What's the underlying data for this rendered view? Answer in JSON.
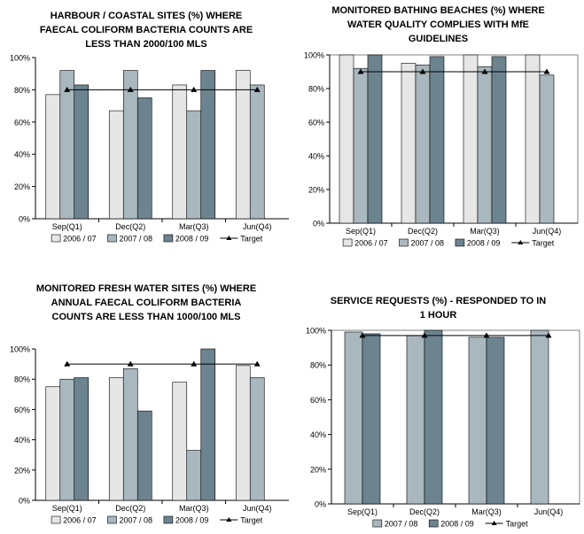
{
  "colors": {
    "s2006": "#e6e6e6",
    "s2007": "#a9b7be",
    "s2008": "#6c8390",
    "target": "#000000",
    "frame": "#808080"
  },
  "chart_data": [
    {
      "type": "bar",
      "title_lines": [
        "HARBOUR / COASTAL SITES (%) WHERE",
        "FAECAL COLIFORM BACTERIA COUNTS ARE",
        "LESS THAN 2000/100 MLS"
      ],
      "categories": [
        "Sep(Q1)",
        "Dec(Q2)",
        "Mar(Q3)",
        "Jun(Q4)"
      ],
      "ylim": [
        0,
        100
      ],
      "yticks": [
        "0%",
        "20%",
        "40%",
        "60%",
        "80%",
        "100%"
      ],
      "grid": false,
      "legend": "bottom",
      "series": [
        {
          "name": "2006 / 07",
          "values": [
            77,
            67,
            83,
            92
          ]
        },
        {
          "name": "2007 / 08",
          "values": [
            92,
            92,
            67,
            83
          ]
        },
        {
          "name": "2008 / 09",
          "values": [
            83,
            75,
            92,
            null
          ]
        }
      ],
      "target": {
        "name": "Target",
        "values": [
          80,
          80,
          80,
          80
        ]
      }
    },
    {
      "type": "bar",
      "title_lines": [
        "MONITORED BATHING BEACHES (%) WHERE",
        "WATER QUALITY COMPLIES WITH MfE",
        "GUIDELINES"
      ],
      "categories": [
        "Sep(Q1)",
        "Dec(Q2)",
        "Mar(Q3)",
        "Jun(Q4)"
      ],
      "ylim": [
        0,
        100
      ],
      "yticks": [
        "0%",
        "20%",
        "40%",
        "60%",
        "80%",
        "100%"
      ],
      "grid": false,
      "legend": "bottom",
      "series": [
        {
          "name": "2006 / 07",
          "values": [
            100,
            95,
            100,
            100
          ]
        },
        {
          "name": "2007 / 08",
          "values": [
            92,
            94,
            93,
            88
          ]
        },
        {
          "name": "2008 / 09",
          "values": [
            100,
            99,
            99,
            null
          ]
        }
      ],
      "target": {
        "name": "Target",
        "values": [
          90,
          90,
          90,
          90
        ]
      }
    },
    {
      "type": "bar",
      "title_lines": [
        "MONITORED FRESH WATER SITES (%) WHERE",
        "ANNUAL FAECAL COLIFORM BACTERIA",
        "COUNTS ARE LESS THAN 1000/100 MLS"
      ],
      "categories": [
        "Sep(Q1)",
        "Dec(Q2)",
        "Mar(Q3)",
        "Jun(Q4)"
      ],
      "ylim": [
        0,
        100
      ],
      "yticks": [
        "0%",
        "20%",
        "40%",
        "60%",
        "80%",
        "100%"
      ],
      "grid": false,
      "legend": "bottom",
      "series": [
        {
          "name": "2006 / 07",
          "values": [
            75,
            81,
            78,
            89
          ]
        },
        {
          "name": "2007 / 08",
          "values": [
            80,
            87,
            33,
            81
          ]
        },
        {
          "name": "2008 / 09",
          "values": [
            81,
            59,
            100,
            null
          ]
        }
      ],
      "target": {
        "name": "Target",
        "values": [
          90,
          90,
          90,
          90
        ]
      }
    },
    {
      "type": "bar",
      "title_lines": [
        "SERVICE REQUESTS (%) - RESPONDED TO IN",
        "1 HOUR"
      ],
      "categories": [
        "Sep(Q1)",
        "Dec(Q2)",
        "Mar(Q3)",
        "Jun(Q4)"
      ],
      "ylim": [
        0,
        100
      ],
      "yticks": [
        "0%",
        "20%",
        "40%",
        "60%",
        "80%",
        "100%"
      ],
      "grid": false,
      "legend": "bottom",
      "series": [
        {
          "name": "2007 / 08",
          "values": [
            99,
            97,
            96,
            100
          ]
        },
        {
          "name": "2008 / 09",
          "values": [
            98,
            100,
            96,
            null
          ]
        }
      ],
      "target": {
        "name": "Target",
        "values": [
          97,
          97,
          97,
          97
        ]
      }
    }
  ]
}
